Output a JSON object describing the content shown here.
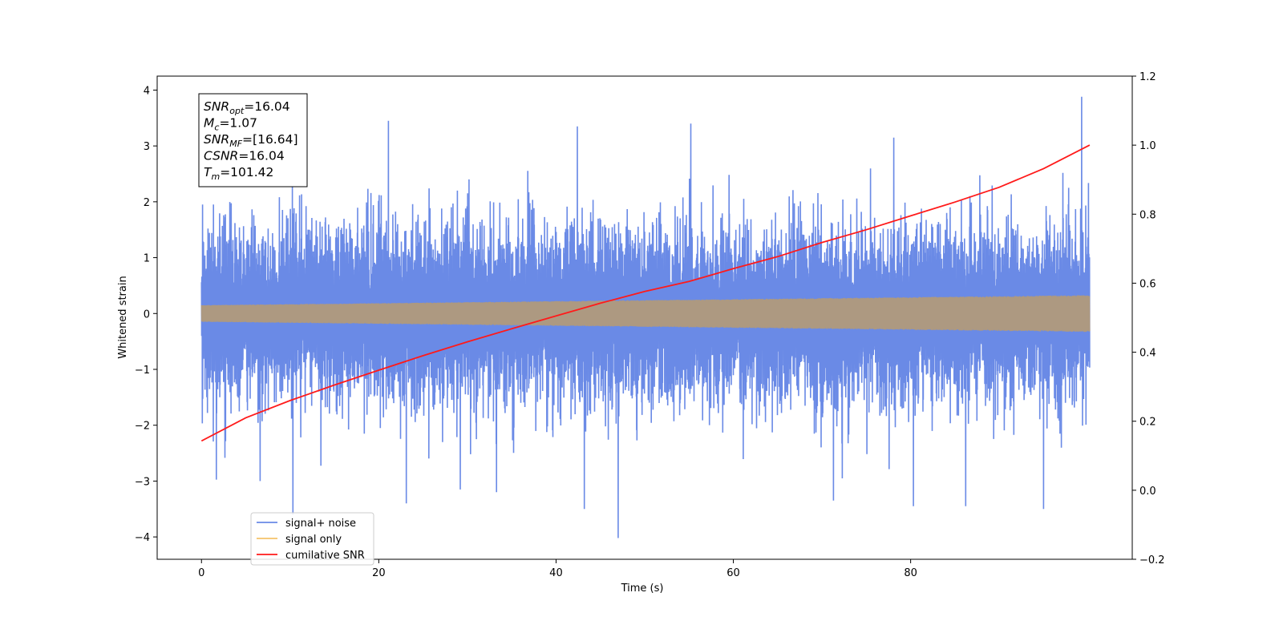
{
  "chart_data": {
    "type": "line",
    "xlabel": "Time (s)",
    "ylabel": "Whitened strain",
    "xlim": [
      -5,
      105
    ],
    "ylim": [
      -4.4,
      4.25
    ],
    "y2lim": [
      -0.2,
      1.2
    ],
    "x_ticks": [
      0,
      20,
      40,
      60,
      80
    ],
    "x_tick_labels": [
      "0",
      "20",
      "40",
      "60",
      "80"
    ],
    "y_ticks": [
      4,
      3,
      2,
      1,
      0,
      -1,
      -2,
      -3,
      -4
    ],
    "y_tick_labels": [
      "4",
      "3",
      "2",
      "1",
      "0",
      "−1",
      "−2",
      "−3",
      "−4"
    ],
    "y2_ticks": [
      1.2,
      1.0,
      0.8,
      0.6,
      0.4,
      0.2,
      0.0,
      -0.2
    ],
    "y2_tick_labels": [
      "1.2",
      "1.0",
      "0.8",
      "0.6",
      "0.4",
      "0.2",
      "0.0",
      "−0.2"
    ],
    "grid": false,
    "legend_position": "bottom-left",
    "series": [
      {
        "name": "signal+ noise",
        "color": "#6a8ae6",
        "axis": "left",
        "x_range": [
          0,
          100.2
        ],
        "typical_half_width": 1.6,
        "peaks": [
          {
            "x": 0.1,
            "y": 1.95
          },
          {
            "x": 10.3,
            "y": -3.6
          },
          {
            "x": 21.1,
            "y": 3.45
          },
          {
            "x": 23.1,
            "y": -3.4
          },
          {
            "x": 29.2,
            "y": -3.15
          },
          {
            "x": 33.3,
            "y": -3.2
          },
          {
            "x": 42.4,
            "y": 3.35
          },
          {
            "x": 43.2,
            "y": -3.5
          },
          {
            "x": 47.0,
            "y": -4.02
          },
          {
            "x": 55.2,
            "y": 3.4
          },
          {
            "x": 71.3,
            "y": -3.35
          },
          {
            "x": 78.1,
            "y": 3.15
          },
          {
            "x": 80.3,
            "y": -3.45
          },
          {
            "x": 86.2,
            "y": -3.45
          },
          {
            "x": 95.0,
            "y": -3.5
          },
          {
            "x": 99.3,
            "y": 3.88
          }
        ]
      },
      {
        "name": "signal only",
        "color": "#f5c36a",
        "axis": "left",
        "x_range": [
          0,
          100.2
        ],
        "amplitude_start": 0.15,
        "amplitude_end": 0.33
      },
      {
        "name": "cumilative SNR",
        "color": "#ff1a1a",
        "axis": "right",
        "x": [
          0,
          5,
          10,
          15,
          20,
          25,
          30,
          35,
          40,
          45,
          50,
          55,
          60,
          65,
          70,
          75,
          80,
          85,
          90,
          95,
          100.2
        ],
        "y": [
          0.143,
          0.21,
          0.26,
          0.305,
          0.348,
          0.39,
          0.43,
          0.468,
          0.505,
          0.542,
          0.576,
          0.605,
          0.642,
          0.677,
          0.718,
          0.755,
          0.795,
          0.835,
          0.878,
          0.932,
          1.0
        ]
      }
    ],
    "annotation": {
      "lines": [
        {
          "sym": "SNR",
          "sub": "opt",
          "rest": "=16.04"
        },
        {
          "sym": "M",
          "sub": "c",
          "rest": "=1.07"
        },
        {
          "sym": "SNR",
          "sub": "MF",
          "rest": "=[16.64]"
        },
        {
          "sym": "CSNR",
          "sub": "",
          "rest": "=16.04"
        },
        {
          "sym": "T",
          "sub": "m",
          "rest": "=101.42"
        }
      ]
    }
  }
}
